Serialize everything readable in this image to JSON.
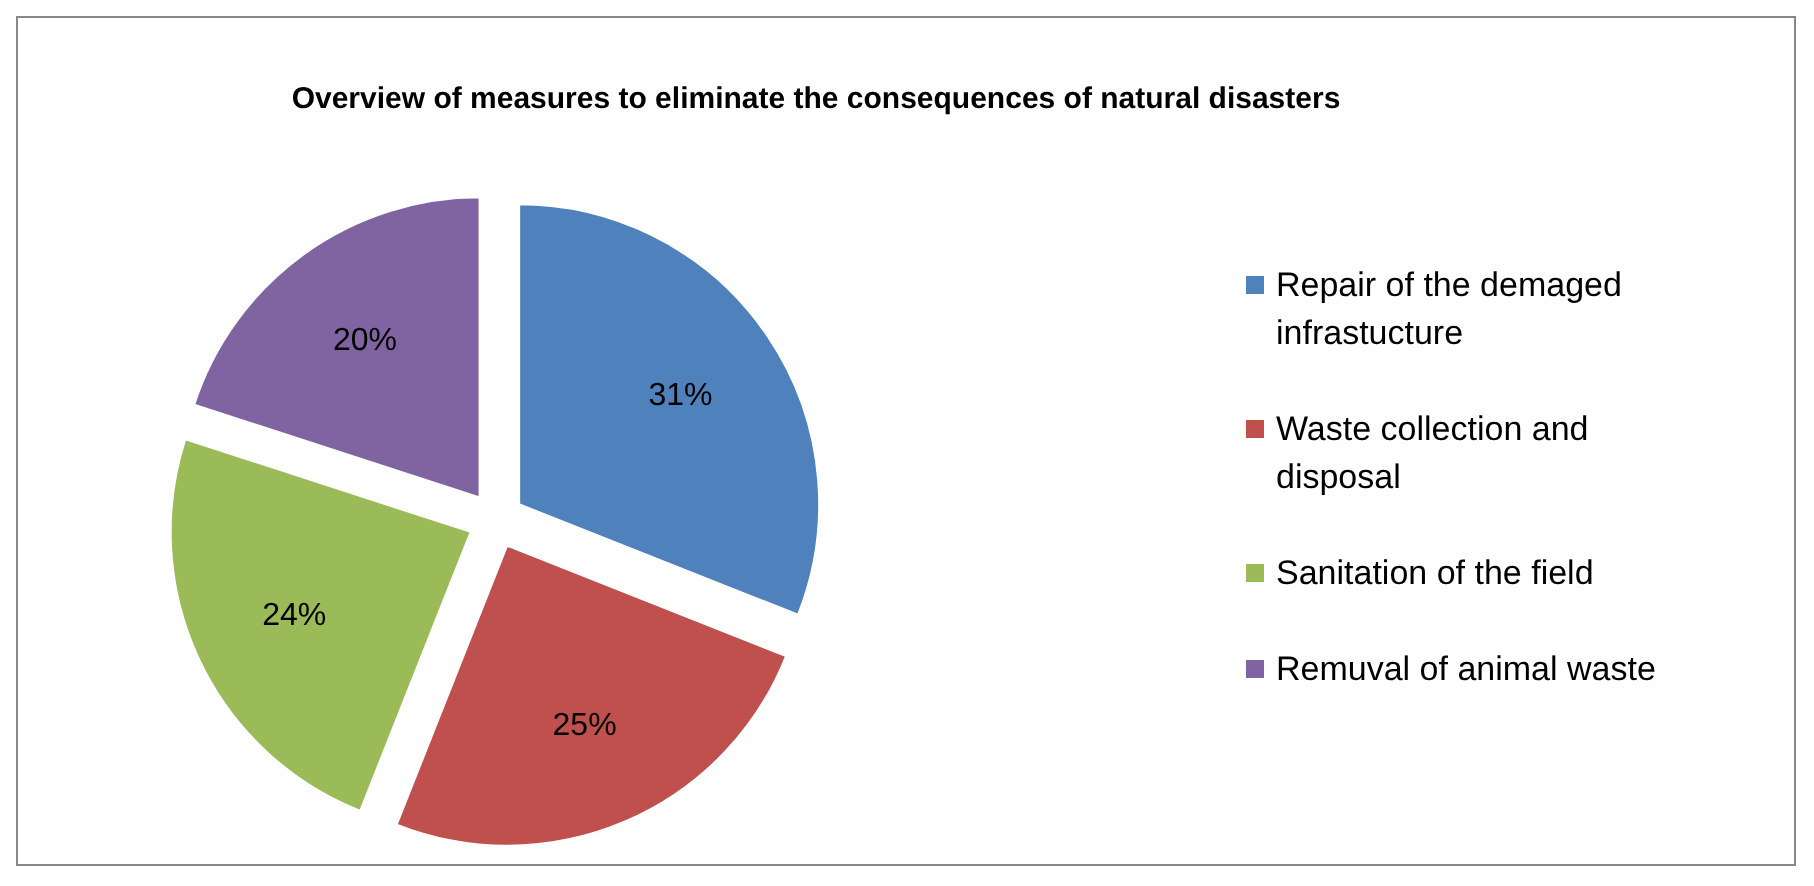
{
  "chart_data": {
    "type": "pie",
    "title": "Overview of measures to eliminate the consequences of natural disasters",
    "categories": [
      "Repair of the demaged infrastucture",
      "Waste collection and disposal",
      "Sanitation of the field",
      "Remuval of animal waste"
    ],
    "values": [
      31,
      25,
      24,
      20
    ],
    "colors": [
      "#4f81bd",
      "#c0504d",
      "#9bbb59",
      "#8064a2"
    ],
    "value_labels": [
      "31%",
      "25%",
      "24%",
      "20%"
    ],
    "legend": "right"
  }
}
